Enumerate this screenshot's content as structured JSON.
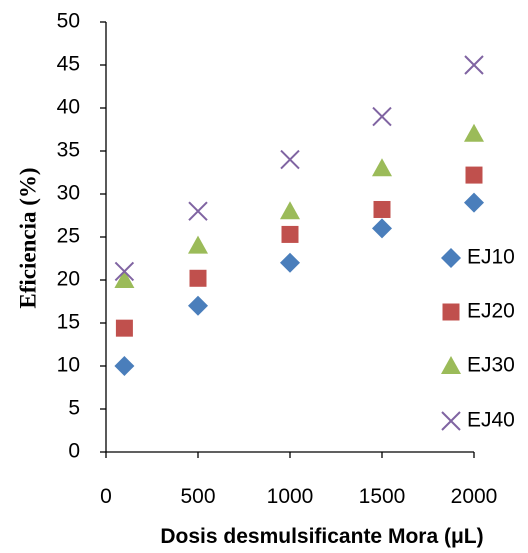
{
  "chart_data": {
    "type": "scatter",
    "title": "",
    "xlabel": "Dosis desmulsificante Mora (μL)",
    "ylabel": "Eficiencia (%)",
    "xlim": [
      0,
      2000
    ],
    "ylim": [
      0,
      50
    ],
    "xticks": [
      "0",
      "500",
      "1000",
      "1500",
      "2000"
    ],
    "yticks": [
      "0",
      "5",
      "10",
      "15",
      "20",
      "25",
      "30",
      "35",
      "40",
      "45",
      "50"
    ],
    "grid": false,
    "legend_position": "right",
    "x": [
      100,
      500,
      1000,
      1500,
      2000
    ],
    "series": [
      {
        "name": "EJ10",
        "marker": "diamond",
        "color": "#4a7ebb",
        "values": [
          10,
          17,
          22,
          26,
          29
        ]
      },
      {
        "name": "EJ20",
        "marker": "square",
        "color": "#c0504d",
        "values": [
          14.4,
          20.2,
          25.3,
          28.2,
          32.2
        ]
      },
      {
        "name": "EJ30",
        "marker": "triangle",
        "color": "#9bbb59",
        "values": [
          20,
          24,
          28,
          33,
          37
        ]
      },
      {
        "name": "EJ40",
        "marker": "x",
        "color": "#8064a2",
        "values": [
          21,
          28,
          34,
          39,
          45
        ]
      }
    ]
  }
}
